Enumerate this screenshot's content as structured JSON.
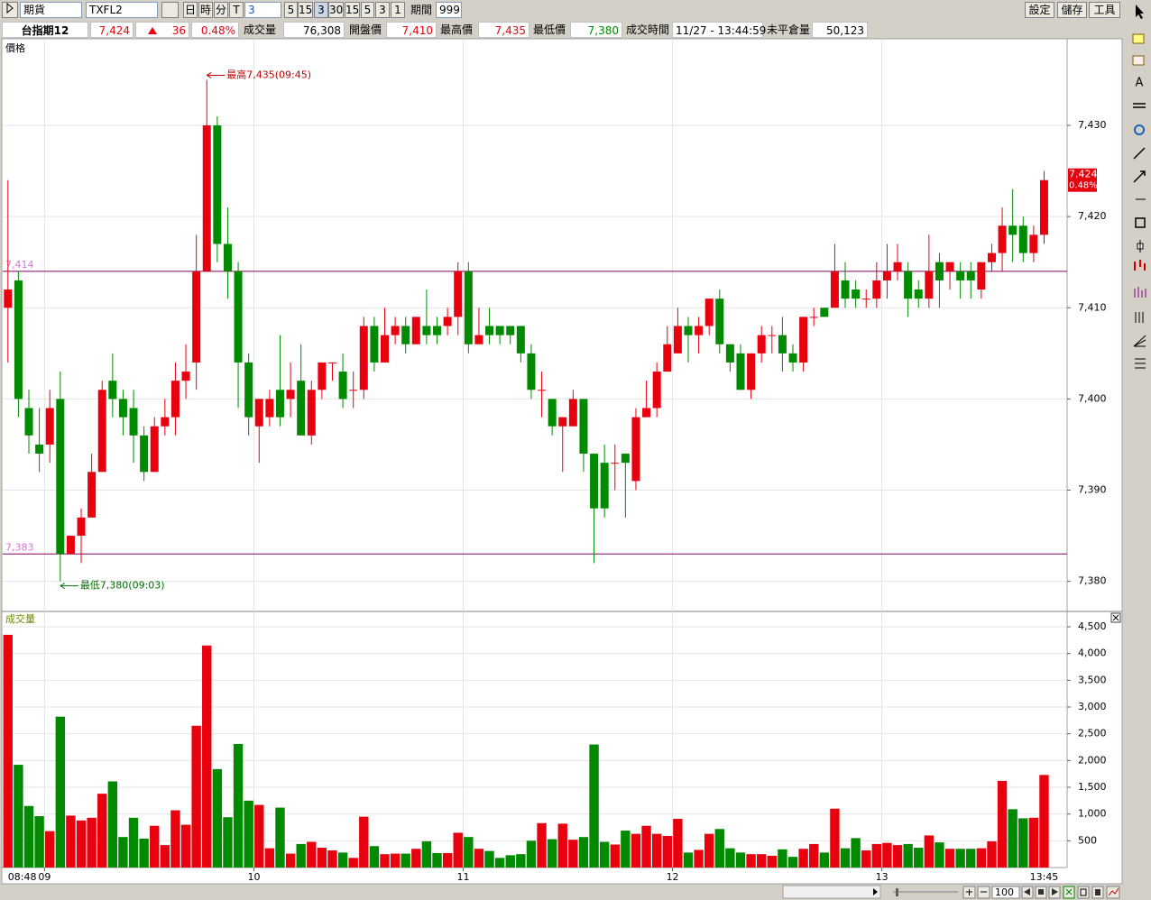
{
  "toolbar": {
    "market": "期貨",
    "symbol": "TXFL2",
    "periods": [
      "日",
      "時",
      "分",
      "T"
    ],
    "period_value": "3",
    "intervals": [
      "5",
      "15",
      "3",
      "30",
      "15",
      "5",
      "3",
      "1"
    ],
    "range_label": "期間",
    "range_value": "999",
    "actions": [
      "設定",
      "儲存",
      "工具"
    ]
  },
  "quote": {
    "name": "台指期12",
    "price": "7,424",
    "change": "36",
    "change_pct": "0.48%",
    "items": [
      {
        "label": "成交量",
        "value": "76,308"
      },
      {
        "label": "開盤價",
        "value": "7,410"
      },
      {
        "label": "最高價",
        "value": "7,435"
      },
      {
        "label": "最低價",
        "value": "7,380"
      },
      {
        "label": "成交時間",
        "value": "11/27 - 13:44:59"
      },
      {
        "label": "未平倉量",
        "value": "50,123"
      }
    ]
  },
  "sidebar": {
    "text_tool": "A"
  },
  "footer": {
    "zoom": "100"
  },
  "chart_data": [
    {
      "type": "candlestick",
      "title": "價格",
      "up_color": "#e8000f",
      "down_color": "#008a00",
      "grid": true,
      "xlim": [
        -0.5,
        101.2
      ],
      "ylim": [
        7376.7,
        7439.4
      ],
      "yticks": [
        {
          "value": 7380,
          "label": "7,380"
        },
        {
          "value": 7390,
          "label": "7,390"
        },
        {
          "value": 7400,
          "label": "7,400"
        },
        {
          "value": 7410,
          "label": "7,410"
        },
        {
          "value": 7420,
          "label": "7,420"
        },
        {
          "value": 7430,
          "label": "7,430"
        }
      ],
      "reference_lines": [
        {
          "value": 7414,
          "label": "7,414"
        },
        {
          "value": 7383,
          "label": "7,383"
        }
      ],
      "annotations": [
        {
          "text": "最高7,435(09:45)",
          "x": 19,
          "value": 7435
        },
        {
          "text": "最低7,380(09:03)",
          "x": 5,
          "value": 7380
        }
      ],
      "last_price": {
        "value": 7424,
        "label": "7,424"
      },
      "open": [
        7410,
        7413,
        7399,
        7395,
        7395,
        7400,
        7383,
        7385,
        7387,
        7392,
        7402,
        7400,
        7399,
        7396,
        7392,
        7397,
        7398,
        7402,
        7404,
        7414,
        7430,
        7417,
        7414,
        7404,
        7397,
        7398,
        7401,
        7400,
        7402,
        7396,
        7401,
        7404,
        7403,
        7401,
        7401,
        7408,
        7404,
        7407,
        7408,
        7406,
        7408,
        7408,
        7408,
        7409,
        7414,
        7406,
        7408,
        7408,
        7408,
        7408,
        7405,
        7401,
        7400,
        7397,
        7397,
        7400,
        7394,
        7393,
        7393,
        7394,
        7391,
        7398,
        7399,
        7403,
        7405,
        7408,
        7407,
        7408,
        7411,
        7406,
        7405,
        7401,
        7405,
        7407,
        7407,
        7405,
        7404,
        7409,
        7410,
        7410,
        7413,
        7412,
        7411,
        7411,
        7413,
        7414,
        7414,
        7412,
        7411,
        7415,
        7414,
        7414,
        7414,
        7412,
        7415,
        7416,
        7419,
        7419,
        7416,
        7418
      ],
      "high": [
        7424,
        7414,
        7401,
        7399,
        7401,
        7403,
        7385,
        7388,
        7394,
        7402,
        7405,
        7401,
        7401,
        7397,
        7398,
        7400,
        7404,
        7406,
        7418,
        7435,
        7431,
        7421,
        7415,
        7405,
        7400,
        7401,
        7407,
        7404,
        7406,
        7402,
        7404,
        7404,
        7405,
        7403,
        7409,
        7409,
        7410,
        7409,
        7409,
        7409,
        7412,
        7409,
        7410,
        7415,
        7415,
        7410,
        7410,
        7408,
        7408,
        7408,
        7406,
        7403,
        7400,
        7398,
        7401,
        7400,
        7394,
        7395,
        7395,
        7394,
        7399,
        7402,
        7404,
        7408,
        7410,
        7409,
        7409,
        7411,
        7412,
        7406,
        7406,
        7405,
        7408,
        7408,
        7409,
        7406,
        7409,
        7410,
        7410,
        7417,
        7415,
        7413,
        7412,
        7415,
        7417,
        7417,
        7415,
        7413,
        7418,
        7416,
        7415,
        7415,
        7415,
        7415,
        7417,
        7421,
        7423,
        7420,
        7419,
        7425
      ],
      "low": [
        7404,
        7398,
        7394,
        7392,
        7393,
        7380,
        7383,
        7382,
        7387,
        7392,
        7398,
        7396,
        7393,
        7391,
        7392,
        7396,
        7396,
        7400,
        7401,
        7414,
        7415,
        7411,
        7399,
        7396,
        7393,
        7397,
        7397,
        7398,
        7396,
        7395,
        7400,
        7402,
        7399,
        7399,
        7400,
        7403,
        7404,
        7406,
        7405,
        7406,
        7406,
        7406,
        7407,
        7407,
        7405,
        7406,
        7406,
        7406,
        7406,
        7404,
        7400,
        7398,
        7396,
        7392,
        7397,
        7392,
        7382,
        7387,
        7390,
        7387,
        7390,
        7398,
        7398,
        7403,
        7405,
        7404,
        7405,
        7407,
        7405,
        7403,
        7401,
        7400,
        7404,
        7405,
        7403,
        7403,
        7403,
        7408,
        7409,
        7410,
        7410,
        7410,
        7410,
        7410,
        7411,
        7413,
        7409,
        7410,
        7410,
        7410,
        7412,
        7411,
        7411,
        7411,
        7414,
        7414,
        7415,
        7415,
        7415,
        7417
      ],
      "close": [
        7412,
        7400,
        7396,
        7394,
        7399,
        7383,
        7385,
        7387,
        7392,
        7401,
        7400,
        7398,
        7396,
        7392,
        7397,
        7398,
        7402,
        7403,
        7414,
        7430,
        7417,
        7414,
        7404,
        7398,
        7400,
        7400,
        7398,
        7401,
        7396,
        7401,
        7404,
        7404,
        7400,
        7401,
        7408,
        7404,
        7407,
        7408,
        7406,
        7409,
        7407,
        7407,
        7409,
        7414,
        7406,
        7407,
        7407,
        7407,
        7407,
        7405,
        7401,
        7401,
        7397,
        7398,
        7400,
        7394,
        7388,
        7388,
        7393,
        7393,
        7398,
        7399,
        7403,
        7406,
        7408,
        7407,
        7408,
        7411,
        7406,
        7404,
        7401,
        7405,
        7407,
        7407,
        7405,
        7404,
        7409,
        7409,
        7409,
        7414,
        7411,
        7411,
        7411,
        7413,
        7414,
        7415,
        7411,
        7411,
        7414,
        7413,
        7415,
        7413,
        7413,
        7415,
        7416,
        7419,
        7418,
        7416,
        7418,
        7424
      ]
    },
    {
      "type": "bar",
      "title": "成交量",
      "grid": true,
      "xlim": [
        -0.5,
        101.2
      ],
      "ylim": [
        0,
        4770
      ],
      "yticks": [
        {
          "value": 500,
          "label": "500"
        },
        {
          "value": 1000,
          "label": "1,000"
        },
        {
          "value": 1500,
          "label": "1,500"
        },
        {
          "value": 2000,
          "label": "2,000"
        },
        {
          "value": 2500,
          "label": "2,500"
        },
        {
          "value": 3000,
          "label": "3,000"
        },
        {
          "value": 3500,
          "label": "3,500"
        },
        {
          "value": 4000,
          "label": "4,000"
        },
        {
          "value": 4500,
          "label": "4,500"
        }
      ],
      "xticks": [
        {
          "value": 3.5,
          "label": "09"
        },
        {
          "value": 23.5,
          "label": "10"
        },
        {
          "value": 43.5,
          "label": "11"
        },
        {
          "value": 63.5,
          "label": "12"
        },
        {
          "value": 83.5,
          "label": "13"
        }
      ],
      "x_range_labels": [
        {
          "value": 0,
          "label": "08:48"
        },
        {
          "value": 99,
          "label": "13:45"
        }
      ],
      "values": [
        4350,
        1920,
        1150,
        960,
        680,
        2820,
        970,
        880,
        930,
        1380,
        1610,
        570,
        930,
        540,
        780,
        420,
        1070,
        800,
        2650,
        4150,
        1840,
        940,
        2310,
        1250,
        1170,
        360,
        1120,
        260,
        440,
        480,
        370,
        320,
        280,
        180,
        950,
        400,
        250,
        260,
        260,
        350,
        490,
        270,
        270,
        650,
        570,
        350,
        310,
        180,
        230,
        250,
        500,
        830,
        530,
        820,
        520,
        570,
        2300,
        480,
        430,
        690,
        630,
        780,
        630,
        590,
        910,
        280,
        330,
        630,
        720,
        360,
        280,
        250,
        250,
        220,
        340,
        200,
        350,
        440,
        280,
        1100,
        360,
        550,
        320,
        440,
        460,
        420,
        440,
        370,
        600,
        470,
        350,
        350,
        350,
        360,
        490,
        1620,
        1090,
        920,
        930,
        1730
      ]
    }
  ]
}
